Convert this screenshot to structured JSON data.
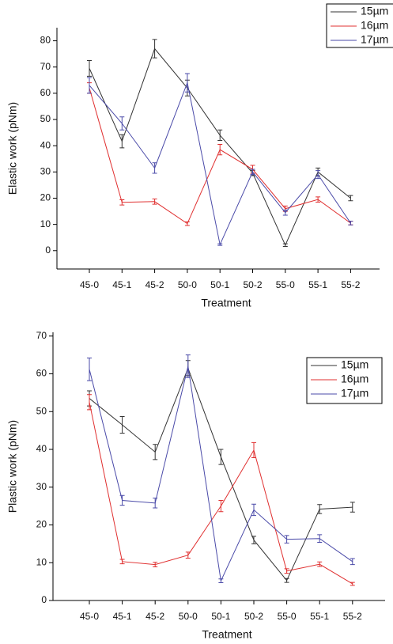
{
  "chart_data": [
    {
      "type": "line",
      "x_label": "Treatment",
      "y_label": "Elastic work (pNm)",
      "categories": [
        "45-0",
        "45-1",
        "45-2",
        "50-0",
        "50-1",
        "50-2",
        "55-0",
        "55-1",
        "55-2"
      ],
      "ylim": [
        -7,
        85
      ],
      "yticks": [
        0,
        10,
        20,
        30,
        40,
        50,
        60,
        70,
        80
      ],
      "legend": "upper right",
      "series": [
        {
          "name": "15µm",
          "color": "#333333",
          "values": [
            69.5,
            41.7,
            77,
            62,
            44,
            29.6,
            2.1,
            30,
            20
          ],
          "errors": [
            3,
            2.5,
            3.5,
            3,
            2,
            1,
            0.5,
            1.5,
            1
          ]
        },
        {
          "name": "16µm",
          "color": "#e03030",
          "values": [
            62,
            18.4,
            18.7,
            10.3,
            38.5,
            31,
            16,
            19.5,
            10.5
          ],
          "errors": [
            2,
            1,
            1,
            0.7,
            2,
            1.5,
            1,
            1,
            0.7
          ]
        },
        {
          "name": "17µm",
          "color": "#4a4aa8",
          "values": [
            63,
            48.5,
            31.5,
            64,
            2.3,
            30,
            14.5,
            29,
            10.5
          ],
          "errors": [
            3,
            2.5,
            2,
            3.5,
            0.3,
            1,
            1,
            1.5,
            0.7
          ]
        }
      ]
    },
    {
      "type": "line",
      "x_label": "Treatment",
      "y_label": "Plastic work (pNm)",
      "categories": [
        "45-0",
        "45-1",
        "45-2",
        "50-0",
        "50-1",
        "50-2",
        "55-0",
        "55-1",
        "55-2"
      ],
      "ylim": [
        0,
        71
      ],
      "yticks": [
        0,
        10,
        20,
        30,
        40,
        50,
        60,
        70
      ],
      "legend": "upper right",
      "series": [
        {
          "name": "15µm",
          "color": "#333333",
          "values": [
            53.5,
            46.5,
            39.3,
            61.5,
            38,
            16,
            5.3,
            24.2,
            24.7
          ],
          "errors": [
            2,
            2.2,
            2,
            2,
            2,
            1,
            0.5,
            1.2,
            1.3
          ]
        },
        {
          "name": "16µm",
          "color": "#e03030",
          "values": [
            52.5,
            10.3,
            9.5,
            12,
            25,
            39.8,
            7.8,
            9.6,
            4.4
          ],
          "errors": [
            2,
            0.6,
            0.6,
            0.8,
            1.5,
            2,
            0.6,
            0.6,
            0.4
          ]
        },
        {
          "name": "17µm",
          "color": "#4a4aa8",
          "values": [
            61.2,
            26.5,
            25.8,
            62,
            5.2,
            24,
            16.2,
            16.4,
            10.3
          ],
          "errors": [
            3,
            1.3,
            1.3,
            3,
            0.5,
            1.5,
            1,
            1,
            0.8
          ]
        }
      ]
    }
  ]
}
